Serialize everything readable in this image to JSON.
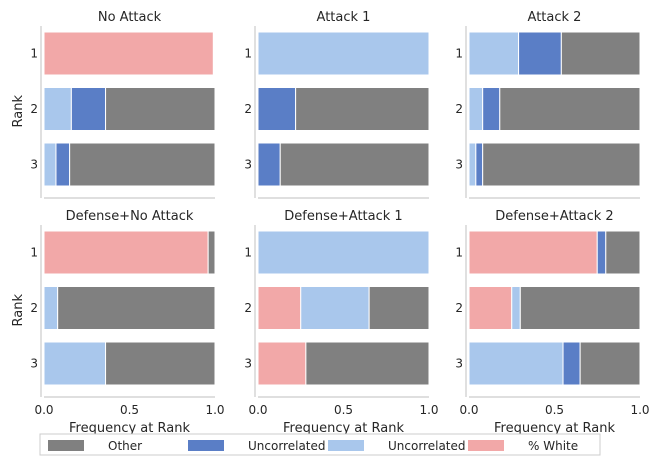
{
  "colors": {
    "Other": "#808080",
    "Uncorrelated #2": "#5a7ec6",
    "Uncorrelated #1": "#a9c7ec",
    "% White": "#f2a8a8"
  },
  "chart_data": {
    "type": "bar",
    "orientation": "horizontal",
    "stacked": true,
    "xlabel": "Frequency at Rank",
    "ylabel": "Rank",
    "xlim": [
      0,
      1
    ],
    "xticks": [
      "0.0",
      "0.5",
      "1.0"
    ],
    "categories": [
      "1",
      "2",
      "3"
    ],
    "legend": {
      "placement": "bottom",
      "entries": [
        "Other",
        "Uncorrelated #2",
        "Uncorrelated #1",
        "% White"
      ]
    },
    "stack_order": [
      "% White",
      "Uncorrelated #1",
      "Uncorrelated #2",
      "Other"
    ],
    "panels": [
      {
        "title": "No Attack",
        "bars": [
          {
            "% White": 0.99,
            "Uncorrelated #1": 0.0,
            "Uncorrelated #2": 0.0,
            "Other": 0.0
          },
          {
            "% White": 0.0,
            "Uncorrelated #1": 0.16,
            "Uncorrelated #2": 0.2,
            "Other": 0.64
          },
          {
            "% White": 0.0,
            "Uncorrelated #1": 0.07,
            "Uncorrelated #2": 0.08,
            "Other": 0.85
          }
        ]
      },
      {
        "title": "Attack 1",
        "bars": [
          {
            "% White": 0.0,
            "Uncorrelated #1": 1.0,
            "Uncorrelated #2": 0.0,
            "Other": 0.0
          },
          {
            "% White": 0.0,
            "Uncorrelated #1": 0.0,
            "Uncorrelated #2": 0.22,
            "Other": 0.78
          },
          {
            "% White": 0.0,
            "Uncorrelated #1": 0.0,
            "Uncorrelated #2": 0.13,
            "Other": 0.87
          }
        ]
      },
      {
        "title": "Attack 2",
        "bars": [
          {
            "% White": 0.0,
            "Uncorrelated #1": 0.29,
            "Uncorrelated #2": 0.25,
            "Other": 0.46
          },
          {
            "% White": 0.0,
            "Uncorrelated #1": 0.08,
            "Uncorrelated #2": 0.1,
            "Other": 0.82
          },
          {
            "% White": 0.0,
            "Uncorrelated #1": 0.04,
            "Uncorrelated #2": 0.04,
            "Other": 0.92
          }
        ]
      },
      {
        "title": "Defense+No Attack",
        "bars": [
          {
            "% White": 0.96,
            "Uncorrelated #1": 0.0,
            "Uncorrelated #2": 0.0,
            "Other": 0.04
          },
          {
            "% White": 0.0,
            "Uncorrelated #1": 0.08,
            "Uncorrelated #2": 0.0,
            "Other": 0.92
          },
          {
            "% White": 0.0,
            "Uncorrelated #1": 0.36,
            "Uncorrelated #2": 0.0,
            "Other": 0.64
          }
        ]
      },
      {
        "title": "Defense+Attack 1",
        "bars": [
          {
            "% White": 0.0,
            "Uncorrelated #1": 1.0,
            "Uncorrelated #2": 0.0,
            "Other": 0.0
          },
          {
            "% White": 0.25,
            "Uncorrelated #1": 0.4,
            "Uncorrelated #2": 0.0,
            "Other": 0.35
          },
          {
            "% White": 0.28,
            "Uncorrelated #1": 0.0,
            "Uncorrelated #2": 0.0,
            "Other": 0.72
          }
        ]
      },
      {
        "title": "Defense+Attack 2",
        "bars": [
          {
            "% White": 0.75,
            "Uncorrelated #1": 0.0,
            "Uncorrelated #2": 0.05,
            "Other": 0.2
          },
          {
            "% White": 0.25,
            "Uncorrelated #1": 0.05,
            "Uncorrelated #2": 0.0,
            "Other": 0.7
          },
          {
            "% White": 0.0,
            "Uncorrelated #1": 0.55,
            "Uncorrelated #2": 0.1,
            "Other": 0.35
          }
        ]
      }
    ]
  }
}
